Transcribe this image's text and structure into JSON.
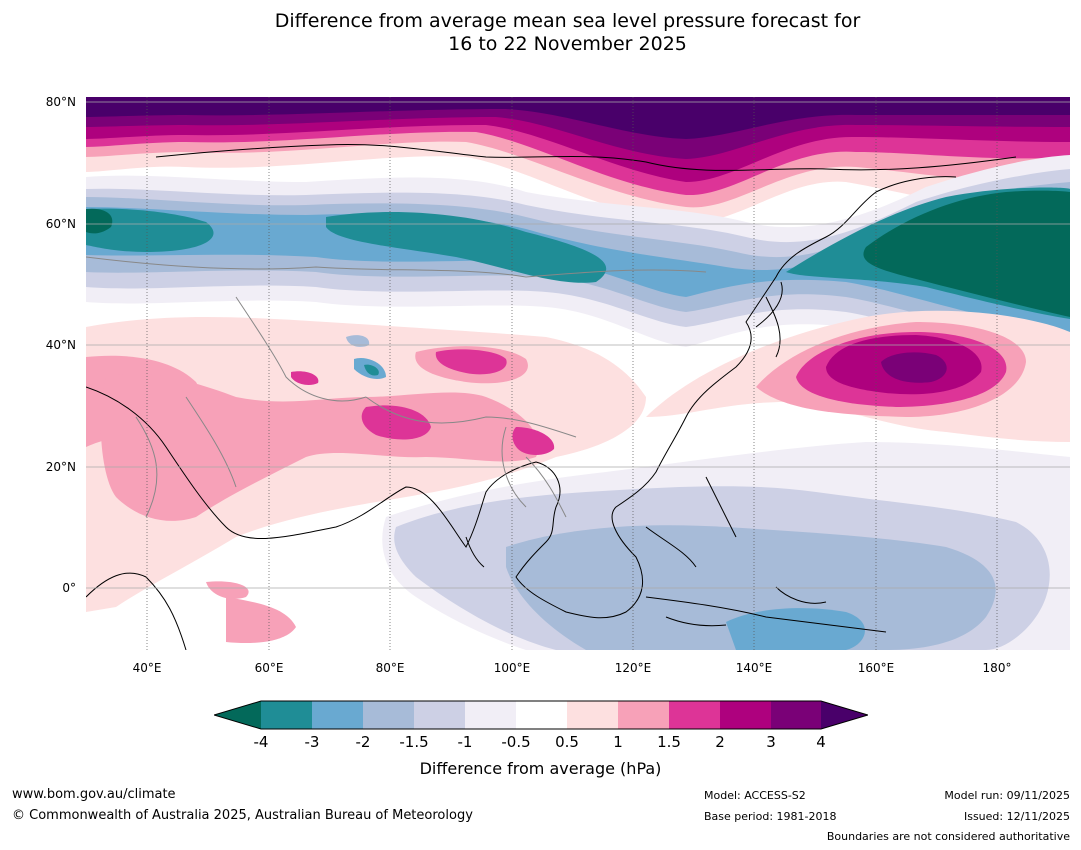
{
  "title": {
    "line1": "Difference from average mean sea level pressure forecast for",
    "line2": "16 to 22 November 2025"
  },
  "map": {
    "lat_labels": [
      "80°N",
      "60°N",
      "40°N",
      "20°N",
      "0°"
    ],
    "lon_labels": [
      "40°E",
      "60°E",
      "80°E",
      "100°E",
      "120°E",
      "140°E",
      "160°E",
      "180°"
    ]
  },
  "colorbar": {
    "ticks": [
      "-4",
      "-3",
      "-2",
      "-1.5",
      "-1",
      "-0.5",
      "0.5",
      "1",
      "1.5",
      "2",
      "3",
      "4"
    ],
    "colors": {
      "below_min": "#03695a",
      "bins": [
        "#1f8d96",
        "#69a9d1",
        "#a7bbd8",
        "#cdd0e5",
        "#f1eef6",
        "#ffffff",
        "#fde0e0",
        "#f7a1b8",
        "#dd3497",
        "#ae017e",
        "#7a0177"
      ],
      "above_max": "#49006a"
    },
    "label": "Difference from average (hPa)"
  },
  "footer": {
    "website": "www.bom.gov.au/climate",
    "copyright": "© Commonwealth of Australia 2025, Australian Bureau of Meteorology",
    "model": "Model: ACCESS-S2",
    "base_period": "Base period: 1981-2018",
    "model_run": "Model run: 09/11/2025",
    "issued": "Issued: 12/11/2025",
    "disclaimer": "Boundaries are not considered authoritative"
  }
}
